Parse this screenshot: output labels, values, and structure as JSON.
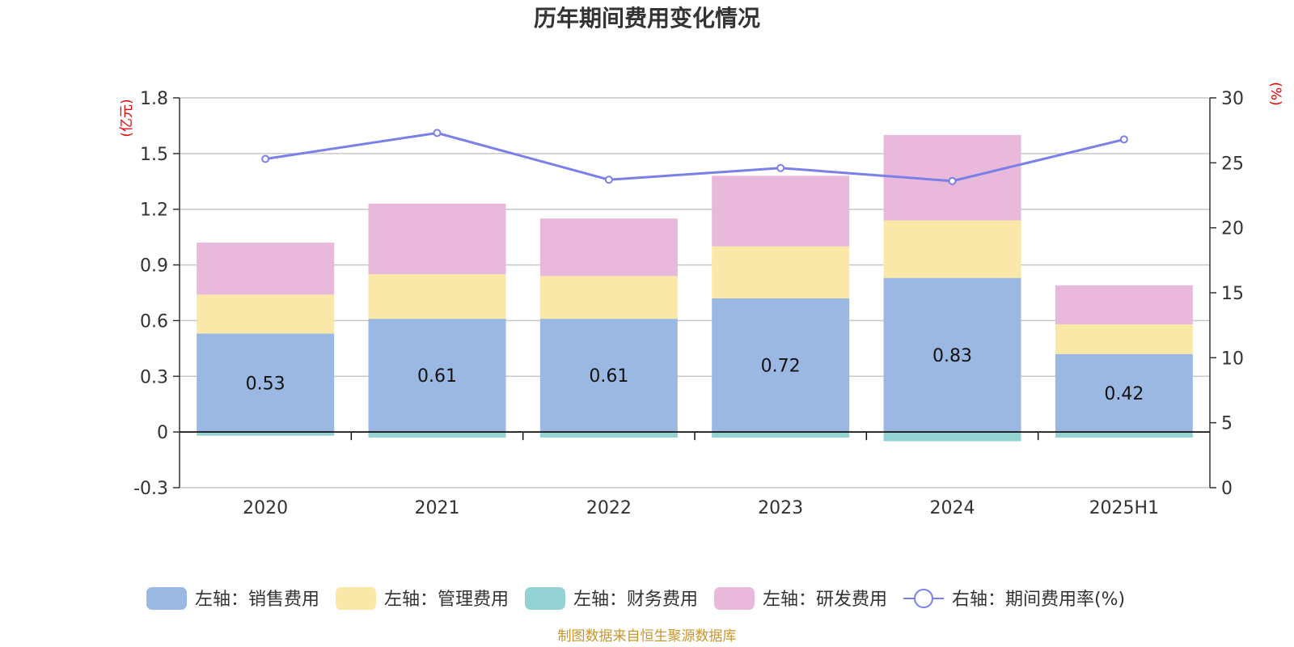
{
  "chart_data": {
    "type": "bar",
    "title": "历年期间费用变化情况",
    "categories": [
      "2020",
      "2021",
      "2022",
      "2023",
      "2024",
      "2025H1"
    ],
    "left_axis": {
      "unit": "(亿元)",
      "ylim": [
        -0.3,
        1.8
      ],
      "ticks": [
        -0.3,
        0,
        0.3,
        0.6,
        0.9,
        1.2,
        1.5,
        1.8
      ]
    },
    "right_axis": {
      "unit": "(%)",
      "ylim": [
        0,
        30
      ],
      "ticks": [
        0,
        5,
        10,
        15,
        20,
        25,
        30
      ]
    },
    "series": [
      {
        "name": "左轴：销售费用",
        "type": "bar",
        "axis": "left",
        "color": "#9bb8e3",
        "values": [
          0.53,
          0.61,
          0.61,
          0.72,
          0.83,
          0.42
        ],
        "data_labels": [
          "0.53",
          "0.61",
          "0.61",
          "0.72",
          "0.83",
          "0.42"
        ]
      },
      {
        "name": "左轴：管理费用",
        "type": "bar",
        "axis": "left",
        "color": "#f9e8a8",
        "values": [
          0.21,
          0.24,
          0.23,
          0.28,
          0.31,
          0.16
        ]
      },
      {
        "name": "左轴：财务费用",
        "type": "bar",
        "axis": "left",
        "color": "#94d3d3",
        "values": [
          -0.02,
          -0.03,
          -0.03,
          -0.03,
          -0.05,
          -0.03
        ]
      },
      {
        "name": "左轴：研发费用",
        "type": "bar",
        "axis": "left",
        "color": "#e8b9da",
        "values": [
          0.28,
          0.38,
          0.31,
          0.38,
          0.46,
          0.21
        ]
      },
      {
        "name": "右轴：期间费用率(%)",
        "type": "line",
        "axis": "right",
        "color": "#7b7fe8",
        "values": [
          25.3,
          27.3,
          23.7,
          24.6,
          23.6,
          26.8
        ]
      }
    ],
    "grid": true,
    "legend_position": "bottom"
  },
  "footer": {
    "source": "制图数据来自恒生聚源数据库"
  }
}
